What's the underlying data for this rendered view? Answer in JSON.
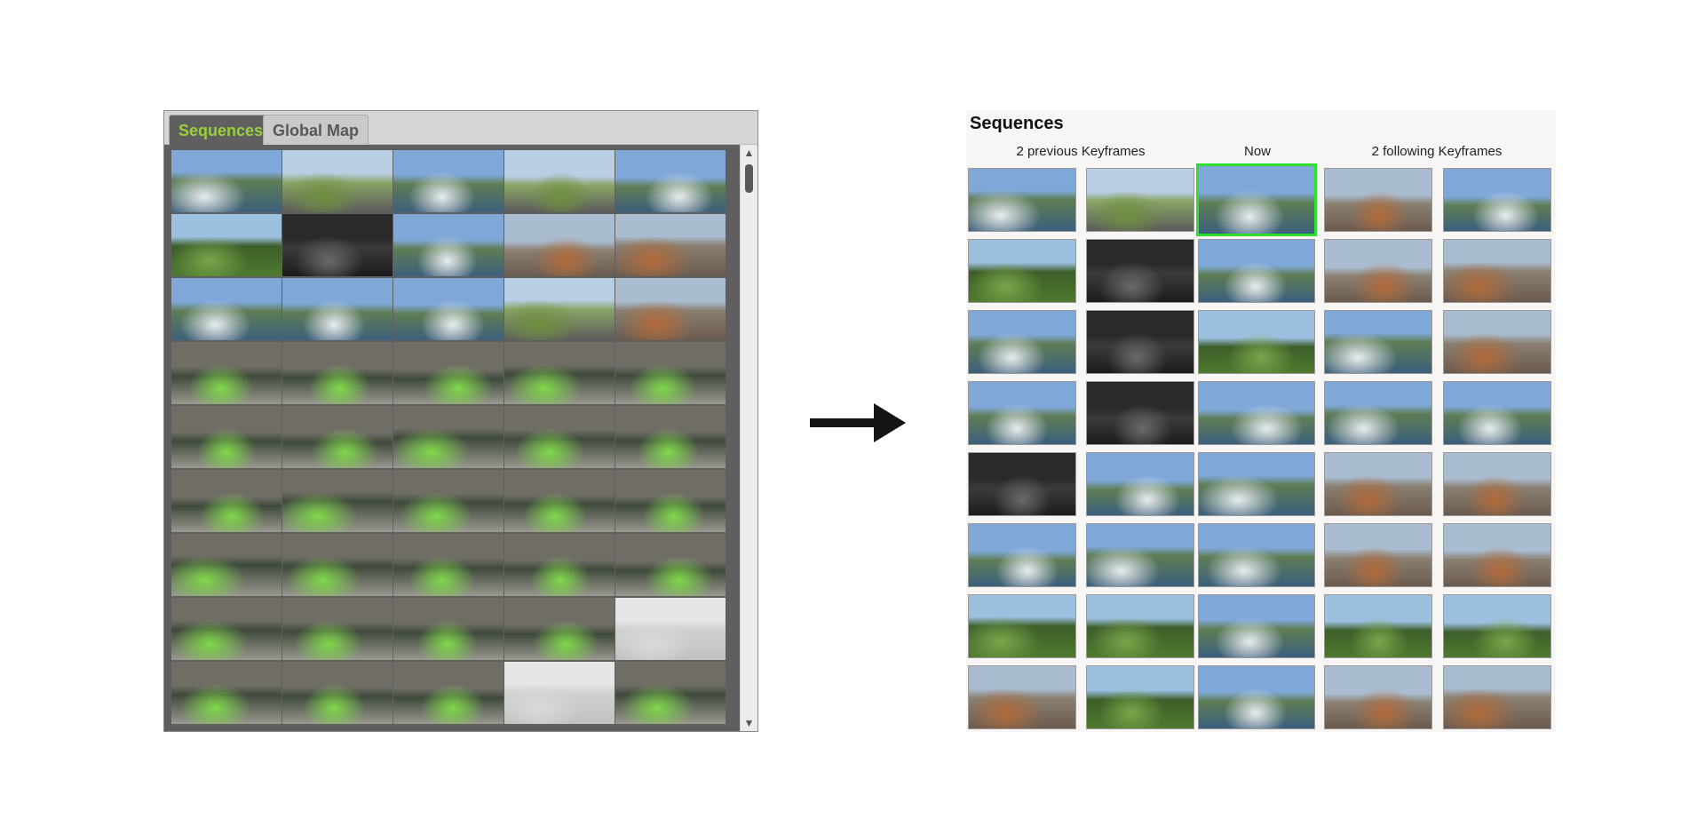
{
  "left_panel": {
    "tabs": [
      {
        "label": "Sequences",
        "active": true
      },
      {
        "label": "Global Map",
        "active": false
      }
    ],
    "scroll_up_glyph": "▲",
    "scroll_down_glyph": "▼",
    "accent_color": "#9ad13a",
    "thumbnails": [
      {
        "scene": "motorcyclists by the sea"
      },
      {
        "scene": "road from motorcycle"
      },
      {
        "scene": "river valley with clouds"
      },
      {
        "scene": "country road with clouds"
      },
      {
        "scene": "river bank with old stone buildings"
      },
      {
        "scene": "road through green hills"
      },
      {
        "scene": "helmet selfie on motorcycle"
      },
      {
        "scene": "tourist at riverside viewpoint"
      },
      {
        "scene": "old town street with cafe"
      },
      {
        "scene": "half-timbered houses"
      },
      {
        "scene": "ferry deck"
      },
      {
        "scene": "ferry deck with cars"
      },
      {
        "scene": "harbor parking"
      },
      {
        "scene": "road from motorcycle"
      },
      {
        "scene": "stone wall alley"
      },
      {
        "scene": "kayak by waterfall"
      },
      {
        "scene": "kayak by waterfall"
      },
      {
        "scene": "kayak by waterfall"
      },
      {
        "scene": "kayak on rapids"
      },
      {
        "scene": "kayak on rapids"
      },
      {
        "scene": "paddling in whitewater"
      },
      {
        "scene": "paddling in whitewater"
      },
      {
        "scene": "kayak in whitewater"
      },
      {
        "scene": "kayak in whitewater"
      },
      {
        "scene": "kayak in whitewater"
      },
      {
        "scene": "kayak in whitewater"
      },
      {
        "scene": "kayak in whitewater"
      },
      {
        "scene": "kayak in whitewater"
      },
      {
        "scene": "kayak in whitewater"
      },
      {
        "scene": "kayak in whitewater"
      },
      {
        "scene": "kayak in whitewater"
      },
      {
        "scene": "kayak in whitewater"
      },
      {
        "scene": "kayak in whitewater"
      },
      {
        "scene": "kayak in whitewater"
      },
      {
        "scene": "kayak in whitewater"
      },
      {
        "scene": "kayak in whitewater"
      },
      {
        "scene": "kayak in whitewater"
      },
      {
        "scene": "kayak in whitewater"
      },
      {
        "scene": "kayak in whitewater"
      },
      {
        "scene": "faded kayak frame"
      },
      {
        "scene": "kayak in whitewater"
      },
      {
        "scene": "kayak in whitewater"
      },
      {
        "scene": "kayak in whitewater"
      },
      {
        "scene": "faded kayak frame"
      },
      {
        "scene": "kayak in whitewater"
      }
    ]
  },
  "right_panel": {
    "title": "Sequences",
    "headers": {
      "previous": "2 previous Keyframes",
      "now": "Now",
      "following": "2 following Keyframes"
    },
    "now_highlight_color": "#2ee02e",
    "rows": [
      [
        "motorcyclists by the sea",
        "road from motorcycle",
        "river valley with clouds",
        "town street view",
        "river bank with old buildings"
      ],
      [
        "road through green hills",
        "helmet selfie on motorcycle",
        "tourist at riverside viewpoint",
        "old town street with cafe",
        "half-timbered houses"
      ],
      [
        "sunlit lake water",
        "dark forest with leaf",
        "park with trees",
        "lakeside town",
        "chalet houses on hillside"
      ],
      [
        "riverside houses",
        "under a bridge",
        "river with large building",
        "river embankment",
        "river embankment"
      ],
      [
        "under a bridge",
        "river with large building",
        "river embankment",
        "town square",
        "town square"
      ],
      [
        "river with trees",
        "river with trees",
        "riverside park",
        "brick buildings",
        "brick buildings"
      ],
      [
        "green valley",
        "castle ruin on hill",
        "river valley village",
        "vineyard fields",
        "hillside village"
      ],
      [
        "stone arch ruin",
        "hills with trees",
        "river gorge",
        "canyon town",
        "narrow old street"
      ]
    ]
  }
}
